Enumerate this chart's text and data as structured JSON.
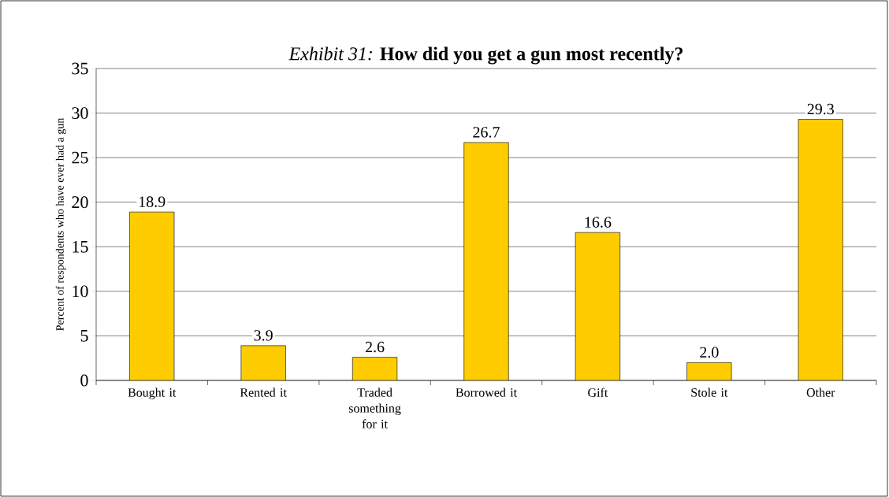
{
  "chart_data": {
    "type": "bar",
    "title": "*Exhibit 31:* **How did you get a gun most recently?**",
    "ylabel": "Percent of respondents who have ever had a gun",
    "categories": [
      "Bought it",
      "Rented it",
      "Traded something for it",
      "Borrowed it",
      "Gift",
      "Stole it",
      "Other"
    ],
    "values": [
      18.9,
      3.9,
      2.6,
      26.7,
      16.6,
      2.0,
      29.3
    ],
    "value_labels": [
      "18.9",
      "3.9",
      "2.6",
      "26.7",
      "16.6",
      "2.0",
      "29.3"
    ],
    "color": "#ffcc00",
    "ylim": [
      0,
      35
    ],
    "yticks": [
      0,
      5,
      10,
      15,
      20,
      25,
      30,
      35
    ],
    "grid": "y"
  }
}
